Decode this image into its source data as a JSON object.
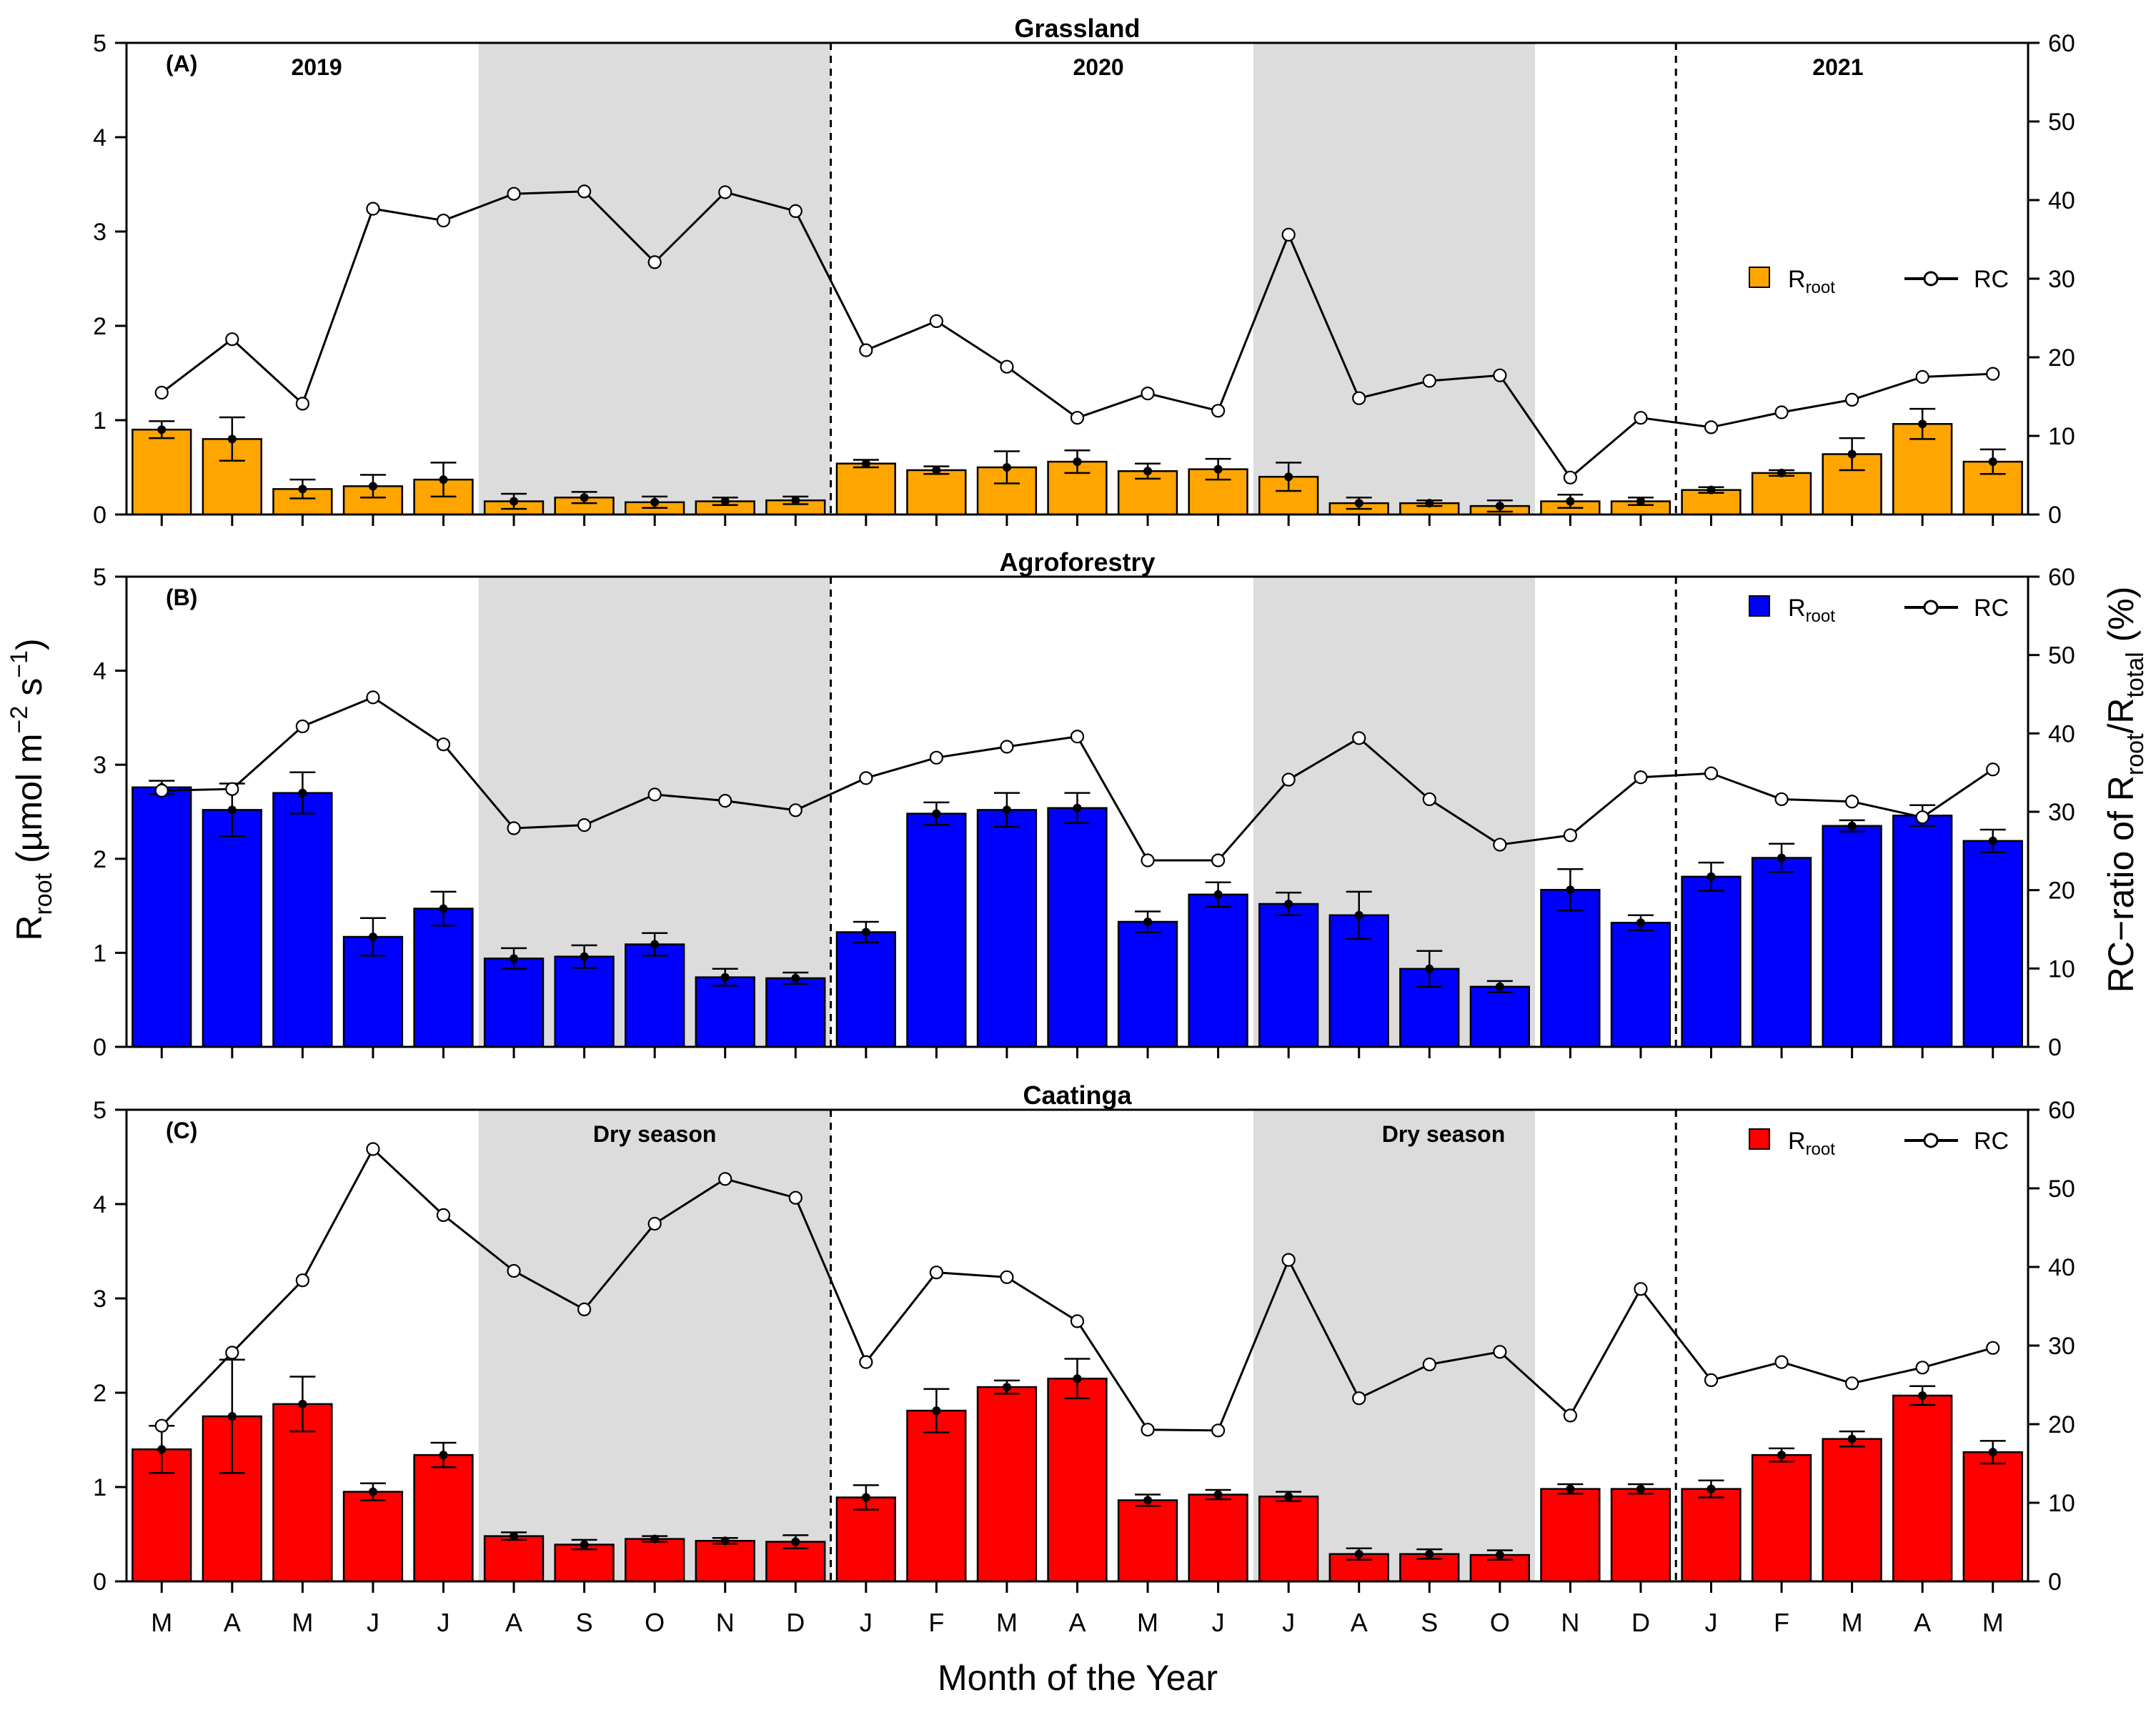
{
  "figure": {
    "ylabel_main": "R",
    "ylabel_sub": "root",
    "ylabel_unit_pre": " (µmol m",
    "ylabel_exp1": "−2",
    "ylabel_mid": " s",
    "ylabel_exp2": "−1",
    "ylabel_close": ")",
    "y2label_pre": "RC−ratio of R",
    "y2label_sub1": "root",
    "y2label_slash": "/R",
    "y2label_sub2": "total",
    "y2label_post": " (%)",
    "xlabel": "Month of the Year",
    "legend_rc": "RC",
    "legend_root_main": "R",
    "legend_root_sub": "root"
  },
  "chart_data": [
    {
      "type": "bar+line",
      "panel": "(A)",
      "title": "Grassland",
      "bar_color": "#FFA500",
      "categories": [
        "M",
        "A",
        "M",
        "J",
        "J",
        "A",
        "S",
        "O",
        "N",
        "D",
        "J",
        "F",
        "M",
        "A",
        "M",
        "J",
        "J",
        "A",
        "S",
        "O",
        "N",
        "D",
        "J",
        "F",
        "M",
        "A",
        "M"
      ],
      "ylim": [
        0,
        5
      ],
      "y2lim": [
        0,
        60
      ],
      "yticks": [
        0,
        1,
        2,
        3,
        4,
        5
      ],
      "y2ticks": [
        0,
        10,
        20,
        30,
        40,
        50,
        60
      ],
      "year_labels": [
        {
          "label": "2019",
          "index": 2.2
        },
        {
          "label": "2020",
          "index": 13.3
        },
        {
          "label": "2021",
          "index": 23.8
        }
      ],
      "season_labels": [],
      "legend_position": "right-middle",
      "bars": {
        "name": "Rroot",
        "values": [
          0.9,
          0.8,
          0.27,
          0.3,
          0.37,
          0.14,
          0.18,
          0.13,
          0.14,
          0.15,
          0.54,
          0.47,
          0.5,
          0.56,
          0.46,
          0.48,
          0.4,
          0.12,
          0.12,
          0.09,
          0.14,
          0.14,
          0.26,
          0.44,
          0.64,
          0.96,
          0.56
        ],
        "errors": [
          0.09,
          0.23,
          0.1,
          0.12,
          0.18,
          0.08,
          0.06,
          0.06,
          0.04,
          0.04,
          0.04,
          0.04,
          0.17,
          0.12,
          0.08,
          0.11,
          0.15,
          0.06,
          0.03,
          0.06,
          0.07,
          0.04,
          0.03,
          0.03,
          0.17,
          0.16,
          0.13
        ]
      },
      "line": {
        "name": "RC",
        "values": [
          15.5,
          22.3,
          14.1,
          38.9,
          37.4,
          40.8,
          41.1,
          32.1,
          41,
          38.6,
          20.9,
          24.6,
          18.8,
          12.3,
          15.4,
          13.2,
          35.6,
          14.8,
          17,
          17.7,
          4.7,
          12.3,
          11.1,
          13,
          14.6,
          17.5,
          17.9
        ]
      }
    },
    {
      "type": "bar+line",
      "panel": "(B)",
      "title": "Agroforestry",
      "bar_color": "#0000FF",
      "categories": [
        "M",
        "A",
        "M",
        "J",
        "J",
        "A",
        "S",
        "O",
        "N",
        "D",
        "J",
        "F",
        "M",
        "A",
        "M",
        "J",
        "J",
        "A",
        "S",
        "O",
        "N",
        "D",
        "J",
        "F",
        "M",
        "A",
        "M"
      ],
      "ylim": [
        0,
        5
      ],
      "y2lim": [
        0,
        60
      ],
      "yticks": [
        0,
        1,
        2,
        3,
        4,
        5
      ],
      "y2ticks": [
        0,
        10,
        20,
        30,
        40,
        50,
        60
      ],
      "year_labels": [],
      "season_labels": [],
      "legend_position": "top-right",
      "bars": {
        "name": "Rroot",
        "values": [
          2.76,
          2.52,
          2.7,
          1.17,
          1.47,
          0.94,
          0.96,
          1.09,
          0.74,
          0.73,
          1.22,
          2.48,
          2.52,
          2.54,
          1.33,
          1.62,
          1.52,
          1.4,
          0.83,
          0.64,
          1.67,
          1.32,
          1.81,
          2.01,
          2.35,
          2.46,
          2.19
        ],
        "errors": [
          0.07,
          0.28,
          0.22,
          0.2,
          0.18,
          0.11,
          0.12,
          0.12,
          0.09,
          0.06,
          0.11,
          0.12,
          0.18,
          0.16,
          0.11,
          0.13,
          0.12,
          0.25,
          0.19,
          0.06,
          0.22,
          0.08,
          0.15,
          0.15,
          0.06,
          0.11,
          0.12
        ]
      },
      "line": {
        "name": "RC",
        "values": [
          32.7,
          32.9,
          40.9,
          44.6,
          38.6,
          27.9,
          28.3,
          32.2,
          31.4,
          30.2,
          34.3,
          36.9,
          38.3,
          39.6,
          23.8,
          23.8,
          34.1,
          39.4,
          31.6,
          25.8,
          27,
          34.4,
          34.9,
          31.6,
          31.3,
          29.3,
          35.4
        ]
      }
    },
    {
      "type": "bar+line",
      "panel": "(C)",
      "title": "Caatinga",
      "bar_color": "#FF0000",
      "categories": [
        "M",
        "A",
        "M",
        "J",
        "J",
        "A",
        "S",
        "O",
        "N",
        "D",
        "J",
        "F",
        "M",
        "A",
        "M",
        "J",
        "J",
        "A",
        "S",
        "O",
        "N",
        "D",
        "J",
        "F",
        "M",
        "A",
        "M"
      ],
      "ylim": [
        0,
        5
      ],
      "y2lim": [
        0,
        60
      ],
      "yticks": [
        0,
        1,
        2,
        3,
        4,
        5
      ],
      "y2ticks": [
        0,
        10,
        20,
        30,
        40,
        50,
        60
      ],
      "year_labels": [],
      "season_labels": [
        {
          "label": "Dry season",
          "index": 7
        },
        {
          "label": "Dry season",
          "index": 18.2
        }
      ],
      "legend_position": "top-right",
      "bars": {
        "name": "Rroot",
        "values": [
          1.4,
          1.75,
          1.88,
          0.95,
          1.34,
          0.48,
          0.39,
          0.45,
          0.43,
          0.42,
          0.89,
          1.81,
          2.06,
          2.15,
          0.86,
          0.92,
          0.9,
          0.29,
          0.29,
          0.28,
          0.98,
          0.98,
          0.98,
          1.34,
          1.51,
          1.97,
          1.37
        ],
        "errors": [
          0.25,
          0.6,
          0.29,
          0.09,
          0.13,
          0.04,
          0.05,
          0.03,
          0.03,
          0.07,
          0.13,
          0.23,
          0.07,
          0.21,
          0.06,
          0.05,
          0.05,
          0.06,
          0.05,
          0.05,
          0.05,
          0.05,
          0.09,
          0.07,
          0.08,
          0.1,
          0.12
        ]
      },
      "line": {
        "name": "RC",
        "values": [
          19.8,
          29.1,
          38.3,
          55,
          46.6,
          39.5,
          34.6,
          45.5,
          51.2,
          48.8,
          27.9,
          39.3,
          38.7,
          33.1,
          19.3,
          19.2,
          40.9,
          23.3,
          27.6,
          29.2,
          21.1,
          37.2,
          25.6,
          27.9,
          25.2,
          27.2,
          29.7
        ]
      }
    }
  ]
}
